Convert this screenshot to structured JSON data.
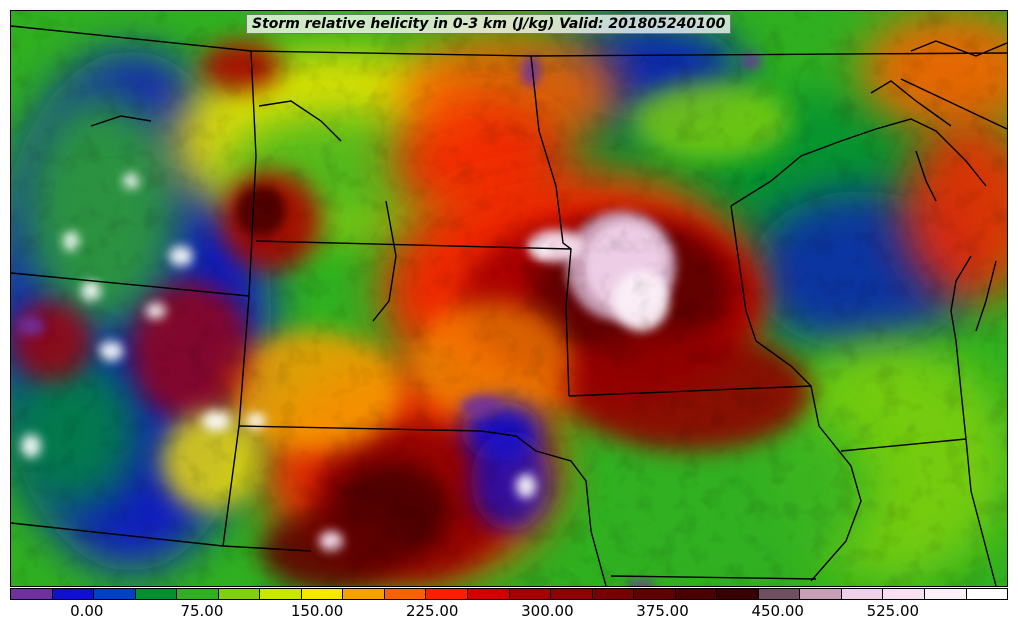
{
  "title": "Storm relative helicity in 0-3 km (J/kg) Valid: 201805240100",
  "colorbar": {
    "colors": [
      "#7030a0",
      "#1010d0",
      "#0040c8",
      "#009030",
      "#30b020",
      "#80d010",
      "#c8e800",
      "#f8e800",
      "#f8a000",
      "#f86000",
      "#f82000",
      "#d00000",
      "#a80000",
      "#900000",
      "#780000",
      "#600000",
      "#480000",
      "#380000",
      "#705060",
      "#c8a0b8",
      "#f0d0e8",
      "#f8e0f0",
      "#fcf0f8",
      "#ffffff"
    ],
    "tick_labels": [
      "0.00",
      "75.00",
      "150.00",
      "225.00",
      "300.00",
      "375.00",
      "450.00",
      "525.00"
    ]
  },
  "chart_data": {
    "type": "heatmap",
    "title": "Storm relative helicity in 0-3 km (J/kg) Valid: 201805240100",
    "colorbar_ticks": [
      0,
      75,
      150,
      225,
      300,
      375,
      450,
      525
    ],
    "colorbar_range": [
      -50,
      600
    ],
    "levels_step": 25
  }
}
